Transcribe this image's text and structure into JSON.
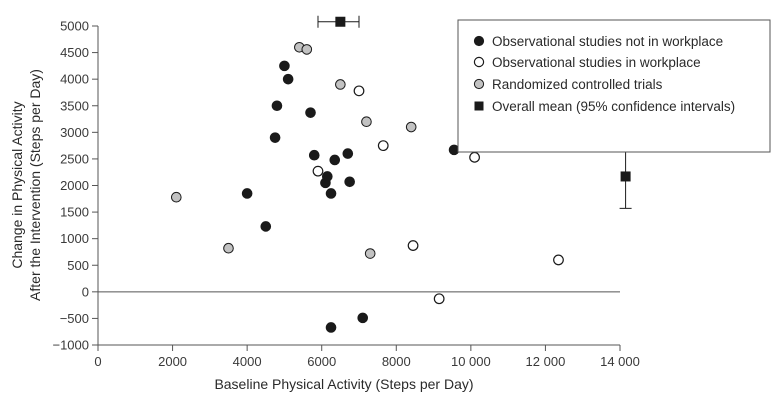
{
  "chart_data": {
    "type": "scatter",
    "xlabel": "Baseline Physical Activity (Steps per Day)",
    "ylabel_lines": [
      "Change in Physical Activity",
      "After the Intervention (Steps per Day)"
    ],
    "xlim": [
      0,
      14000
    ],
    "ylim": [
      -1000,
      5000
    ],
    "x_ticks": [
      0,
      2000,
      4000,
      6000,
      8000,
      10000,
      12000,
      14000
    ],
    "x_tick_labels": [
      "0",
      "2000",
      "4000",
      "6000",
      "8000",
      "10 000",
      "12 000",
      "14 000"
    ],
    "y_ticks": [
      -1000,
      -500,
      0,
      500,
      1000,
      1500,
      2000,
      2500,
      3000,
      3500,
      4000,
      4500,
      5000
    ],
    "y_tick_labels": [
      "−1000",
      "−500",
      "0",
      "500",
      "1000",
      "1500",
      "2000",
      "2500",
      "3000",
      "3500",
      "4000",
      "4500",
      "5000"
    ],
    "grid": false,
    "legend_position": "top-right",
    "series": [
      {
        "name": "Observational studies not in workplace",
        "marker": "filled-circle",
        "color": "#1a1a1a",
        "points": [
          {
            "x": 4000,
            "y": 1850
          },
          {
            "x": 4500,
            "y": 1230
          },
          {
            "x": 4750,
            "y": 2900
          },
          {
            "x": 4800,
            "y": 3500
          },
          {
            "x": 5000,
            "y": 4250
          },
          {
            "x": 5100,
            "y": 4000
          },
          {
            "x": 5700,
            "y": 3370
          },
          {
            "x": 5800,
            "y": 2570
          },
          {
            "x": 6100,
            "y": 2050
          },
          {
            "x": 6150,
            "y": 2170
          },
          {
            "x": 6250,
            "y": 1850
          },
          {
            "x": 6350,
            "y": 2480
          },
          {
            "x": 6700,
            "y": 2600
          },
          {
            "x": 6750,
            "y": 2070
          },
          {
            "x": 9550,
            "y": 2670
          },
          {
            "x": 6250,
            "y": -670
          },
          {
            "x": 7100,
            "y": -490
          }
        ]
      },
      {
        "name": "Observational studies in workplace",
        "marker": "open-circle",
        "color": "#ffffff",
        "points": [
          {
            "x": 5900,
            "y": 2270
          },
          {
            "x": 7000,
            "y": 3780
          },
          {
            "x": 7650,
            "y": 2750
          },
          {
            "x": 8450,
            "y": 870
          },
          {
            "x": 9150,
            "y": -130
          },
          {
            "x": 10100,
            "y": 2530
          },
          {
            "x": 12350,
            "y": 600
          }
        ]
      },
      {
        "name": "Randomized controlled trials",
        "marker": "gray-circle",
        "color": "#c2c2c2",
        "points": [
          {
            "x": 2100,
            "y": 1780
          },
          {
            "x": 3500,
            "y": 820
          },
          {
            "x": 5400,
            "y": 4600
          },
          {
            "x": 5600,
            "y": 4560
          },
          {
            "x": 6500,
            "y": 3900
          },
          {
            "x": 7200,
            "y": 3200
          },
          {
            "x": 7300,
            "y": 720
          },
          {
            "x": 8400,
            "y": 3100
          }
        ]
      }
    ],
    "overall_mean": {
      "name": "Overall mean (95% confidence intervals)",
      "marker": "filled-square",
      "color": "#1a1a1a",
      "x_interval": {
        "x": 6500,
        "x_low": 5900,
        "x_high": 7000,
        "y": 5080
      },
      "y_interval": {
        "x": 14150,
        "y": 2170,
        "y_low": 1570,
        "y_high": 2790
      }
    }
  }
}
